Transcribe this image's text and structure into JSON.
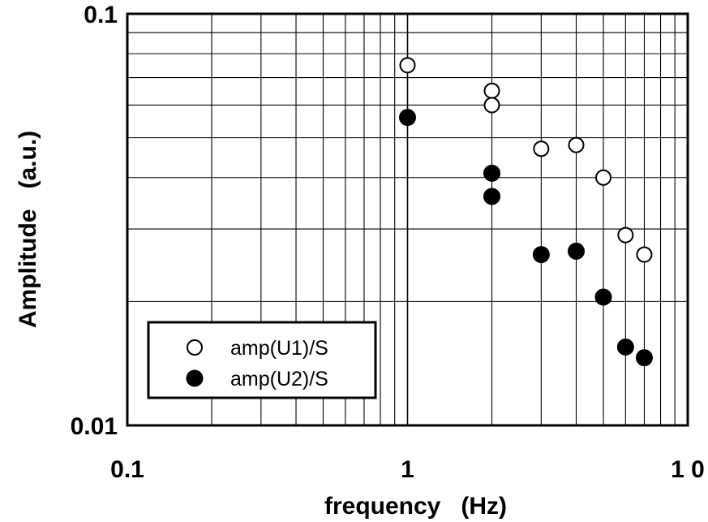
{
  "chart_data": {
    "type": "scatter",
    "xlabel": "frequency   (Hz)",
    "ylabel": "Amplitude   (a.u.)",
    "x_scale": "log",
    "y_scale": "log",
    "xlim": [
      0.1,
      10
    ],
    "ylim": [
      0.01,
      0.1
    ],
    "grid": true,
    "x_ticks": [
      {
        "value": 0.1,
        "label": "0.1"
      },
      {
        "value": 1,
        "label": "1"
      },
      {
        "value": 10,
        "label": "1 0"
      }
    ],
    "y_ticks": [
      {
        "value": 0.01,
        "label": "0.01"
      },
      {
        "value": 0.1,
        "label": "0.1"
      }
    ],
    "legend_position": "bottom-left",
    "series": [
      {
        "name": "amp(U1)/S",
        "marker": "open-circle",
        "color": "#000000",
        "points": [
          {
            "x": 1,
            "y": 0.075
          },
          {
            "x": 2,
            "y": 0.065
          },
          {
            "x": 2,
            "y": 0.06
          },
          {
            "x": 3,
            "y": 0.047
          },
          {
            "x": 4,
            "y": 0.048
          },
          {
            "x": 5,
            "y": 0.04
          },
          {
            "x": 6,
            "y": 0.029
          },
          {
            "x": 7,
            "y": 0.026
          }
        ]
      },
      {
        "name": "amp(U2)/S",
        "marker": "filled-circle",
        "color": "#000000",
        "points": [
          {
            "x": 1,
            "y": 0.056
          },
          {
            "x": 2,
            "y": 0.041
          },
          {
            "x": 2,
            "y": 0.036
          },
          {
            "x": 3,
            "y": 0.026
          },
          {
            "x": 4,
            "y": 0.0265
          },
          {
            "x": 5,
            "y": 0.0205
          },
          {
            "x": 6,
            "y": 0.0155
          },
          {
            "x": 7,
            "y": 0.0146
          }
        ]
      }
    ]
  }
}
